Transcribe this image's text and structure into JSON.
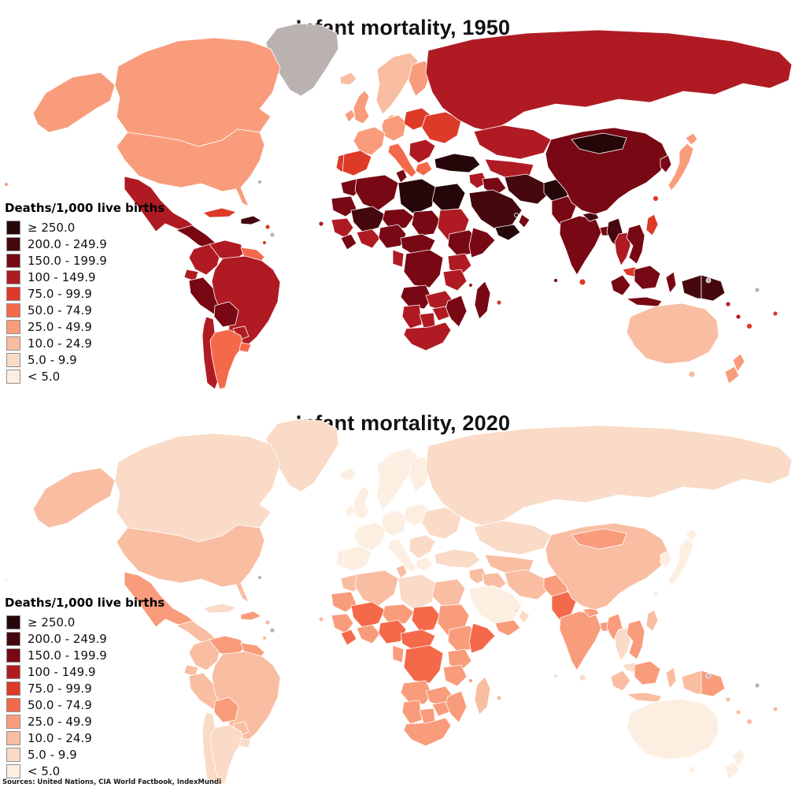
{
  "source_note": "Sources: United Nations, CIA World Factbook, IndexMundi",
  "legend": {
    "title": "Deaths/1,000 live births",
    "no_data_color": "#b9b2b0",
    "items": [
      {
        "key": "gte250",
        "label": "≥ 250.0",
        "color": "#250609"
      },
      {
        "key": "b200",
        "label": "200.0 - 249.9",
        "color": "#45080f"
      },
      {
        "key": "b150",
        "label": "150.0 - 199.9",
        "color": "#780814"
      },
      {
        "key": "b100",
        "label": "100 - 149.9",
        "color": "#b01b23"
      },
      {
        "key": "b75",
        "label": "75.0 - 99.9",
        "color": "#dd3a27"
      },
      {
        "key": "b50",
        "label": "50.0 - 74.9",
        "color": "#f4694a"
      },
      {
        "key": "b25",
        "label": "25.0 - 49.9",
        "color": "#f99c7c"
      },
      {
        "key": "b10",
        "label": "10.0 - 24.9",
        "color": "#f9bda1"
      },
      {
        "key": "b5",
        "label": "5.0 - 9.9",
        "color": "#f9dbc7"
      },
      {
        "key": "lt5",
        "label": "< 5.0",
        "color": "#fdeee2"
      }
    ]
  },
  "chart_data": {
    "type": "choropleth_map",
    "unit": "infant deaths per 1,000 live births",
    "maps": [
      {
        "title": "Infant mortality, 1950",
        "values": {
          "greenland": "nodata",
          "iceland": "b10",
          "alaska": "b25",
          "canada": "b25",
          "usa": "b25",
          "mexico": "b100",
          "central-america": "b150",
          "cuba": "b75",
          "hispaniola": "b200",
          "carib1": "b75",
          "carib2": "nodata",
          "carib3": "b75",
          "bermuda": "nodata",
          "hawaii": "b25",
          "colombia": "b100",
          "venezuela": "b100",
          "guianas": "b50",
          "ecuador": "b100",
          "peru": "b150",
          "brazil": "b100",
          "bolivia": "b150",
          "paraguay": "b100",
          "chile": "b100",
          "argentina": "b50",
          "uruguay": "b50",
          "uk": "b25",
          "ireland": "b25",
          "scandinavia": "b10",
          "finland": "b25",
          "denmark": "b25",
          "germany-central": "b25",
          "france": "b25",
          "iberia-spain": "b75",
          "portugal": "b75",
          "italy": "b50",
          "poland-baltics": "b75",
          "eastern-europe": "b75",
          "balkans": "b100",
          "greece": "b50",
          "turkey": "gte250",
          "russia": "b100",
          "kazakhstan": "b100",
          "central-asia": "b100",
          "levant": "b100",
          "iraq": "b150",
          "saudi": "b200",
          "yemen": "gte250",
          "oman": "b150",
          "bahrain": "b200",
          "iran": "b200",
          "afghanistan": "gte250",
          "pakistan": "b150",
          "india": "b150",
          "srilanka": "b75",
          "nepal": "b200",
          "bangladesh": "b150",
          "maldives": "b150",
          "myanmar": "b200",
          "thailand": "b100",
          "indochina": "b150",
          "malaysia": "b75",
          "china": "b150",
          "mongolia": "gte250",
          "korea": "b150",
          "japan": "b25",
          "hokkaido": "b25",
          "taiwan": "b75",
          "philippines": "b75",
          "sumatra": "b150",
          "java": "b150",
          "borneo": "b150",
          "sulawesi": "b150",
          "wnewguinea": "b200",
          "png": "b200",
          "australia": "b10",
          "tasmania": "b10",
          "nz-north": "b25",
          "nz-south": "b25",
          "fiji": "b75",
          "solomon": "b100",
          "vanuatu": "b100",
          "samoa": "b75",
          "pac-gray1": "nodata",
          "pac-gray2": "nodata",
          "morocco": "b150",
          "mauritania": "b150",
          "algeria": "b150",
          "tunisia": "b150",
          "libya": "gte250",
          "egypt": "gte250",
          "mali": "b200",
          "niger": "b150",
          "chad": "b150",
          "sudan": "b100",
          "senegal-guinea": "b100",
          "sierra-liberia": "b150",
          "ivory-ghana": "b100",
          "nigeria": "b150",
          "cameroon-car": "b150",
          "ethiopia": "b150",
          "somalia": "b150",
          "kenya-uganda": "b100",
          "drc": "b150",
          "congo-gabon": "b100",
          "tanzania": "b100",
          "angola": "b150",
          "zambia": "b100",
          "mozambique": "b150",
          "zimbabwe": "b100",
          "namibia": "b100",
          "botswana": "b100",
          "south-africa": "b100",
          "madagascar": "b150",
          "capeverde": "b100",
          "mauritius": "b75",
          "comoros": "b100"
        }
      },
      {
        "title": "Infant mortality, 2020",
        "values": {
          "greenland": "b5",
          "iceland": "lt5",
          "alaska": "b10",
          "canada": "b5",
          "usa": "b10",
          "mexico": "b25",
          "central-america": "b10",
          "cuba": "b5",
          "hispaniola": "b25",
          "carib1": "b10",
          "carib2": "nodata",
          "carib3": "b10",
          "bermuda": "nodata",
          "hawaii": "lt5",
          "colombia": "b10",
          "venezuela": "b25",
          "guianas": "b25",
          "ecuador": "b10",
          "peru": "b10",
          "brazil": "b10",
          "bolivia": "b25",
          "paraguay": "b10",
          "chile": "b5",
          "argentina": "b5",
          "uruguay": "b5",
          "uk": "lt5",
          "ireland": "lt5",
          "scandinavia": "lt5",
          "finland": "lt5",
          "denmark": "lt5",
          "germany-central": "lt5",
          "france": "lt5",
          "iberia-spain": "lt5",
          "portugal": "lt5",
          "italy": "lt5",
          "poland-baltics": "lt5",
          "eastern-europe": "b5",
          "balkans": "b5",
          "greece": "lt5",
          "turkey": "b5",
          "russia": "b5",
          "kazakhstan": "b5",
          "central-asia": "b10",
          "levant": "b10",
          "iraq": "b10",
          "saudi": "lt5",
          "yemen": "b25",
          "oman": "b5",
          "bahrain": "b5",
          "iran": "b10",
          "afghanistan": "b25",
          "pakistan": "b50",
          "india": "b25",
          "srilanka": "b5",
          "nepal": "b25",
          "bangladesh": "b25",
          "maldives": "b5",
          "myanmar": "b25",
          "thailand": "b5",
          "indochina": "b25",
          "malaysia": "b5",
          "china": "b10",
          "mongolia": "b25",
          "korea": "lt5",
          "japan": "lt5",
          "hokkaido": "lt5",
          "taiwan": "lt5",
          "philippines": "b10",
          "sumatra": "b10",
          "java": "b10",
          "borneo": "b25",
          "sulawesi": "b10",
          "wnewguinea": "b10",
          "png": "b25",
          "australia": "lt5",
          "tasmania": "lt5",
          "nz-north": "lt5",
          "nz-south": "lt5",
          "fiji": "b10",
          "solomon": "b10",
          "vanuatu": "b10",
          "samoa": "b10",
          "pac-gray1": "nodata",
          "pac-gray2": "nodata",
          "morocco": "b10",
          "mauritania": "b25",
          "algeria": "b10",
          "tunisia": "b10",
          "libya": "b5",
          "egypt": "b10",
          "mali": "b50",
          "niger": "b25",
          "chad": "b50",
          "sudan": "b25",
          "senegal-guinea": "b25",
          "sierra-liberia": "b50",
          "ivory-ghana": "b25",
          "nigeria": "b50",
          "cameroon-car": "b50",
          "ethiopia": "b25",
          "somalia": "b50",
          "kenya-uganda": "b25",
          "drc": "b50",
          "congo-gabon": "b25",
          "tanzania": "b25",
          "angola": "b25",
          "zambia": "b25",
          "mozambique": "b25",
          "zimbabwe": "b25",
          "namibia": "b25",
          "botswana": "b25",
          "south-africa": "b25",
          "madagascar": "b10",
          "capeverde": "b10",
          "mauritius": "b10",
          "comoros": "b25"
        }
      }
    ]
  }
}
